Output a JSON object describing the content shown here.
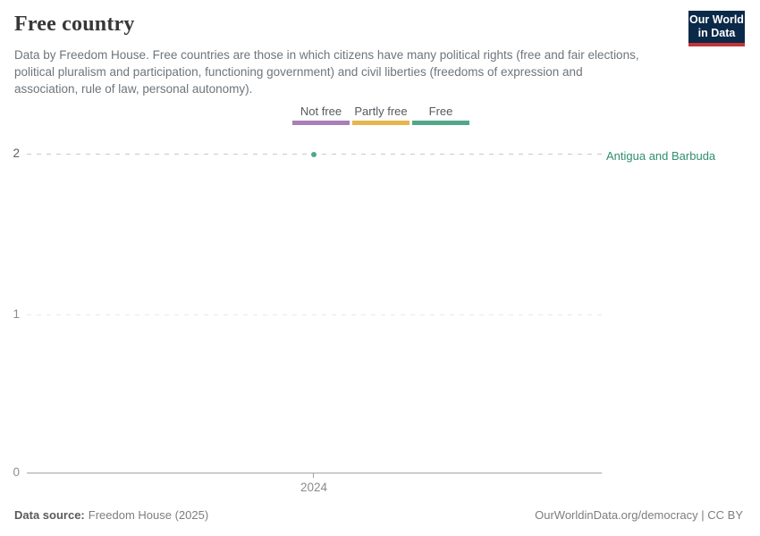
{
  "header": {
    "title": "Free country",
    "subtitle": "Data by Freedom House. Free countries are those in which citizens have many political rights (free and fair elections, political pluralism and participation, functioning government) and civil liberties (freedoms of expression and association, rule of law, personal autonomy).",
    "logo": {
      "line1": "Our World",
      "line2": "in Data",
      "bg": "#0b2949",
      "accent": "#c53337"
    }
  },
  "legend": {
    "items": [
      {
        "label": "Not free",
        "color": "#a87fb8"
      },
      {
        "label": "Partly free",
        "color": "#e7b54c"
      },
      {
        "label": "Free",
        "color": "#51a888"
      }
    ]
  },
  "chart_data": {
    "type": "scatter",
    "title": "Free country",
    "xlabel": "",
    "ylabel": "",
    "x_ticks": [
      "2024"
    ],
    "y_ticks": [
      "0",
      "1",
      "2"
    ],
    "ylim": [
      0,
      2
    ],
    "grid": "horizontal dashed",
    "value_labels": {
      "0": "Not free",
      "1": "Partly free",
      "2": "Free"
    },
    "series": [
      {
        "name": "Antigua and Barbuda",
        "x": [
          2024
        ],
        "y": [
          2
        ],
        "status": "Free",
        "color": "#51a888",
        "label_color": "#2f8e70"
      }
    ]
  },
  "footer": {
    "source_label": "Data source:",
    "source_value": "Freedom House (2025)",
    "right_text": "OurWorldinData.org/democracy | CC BY"
  }
}
